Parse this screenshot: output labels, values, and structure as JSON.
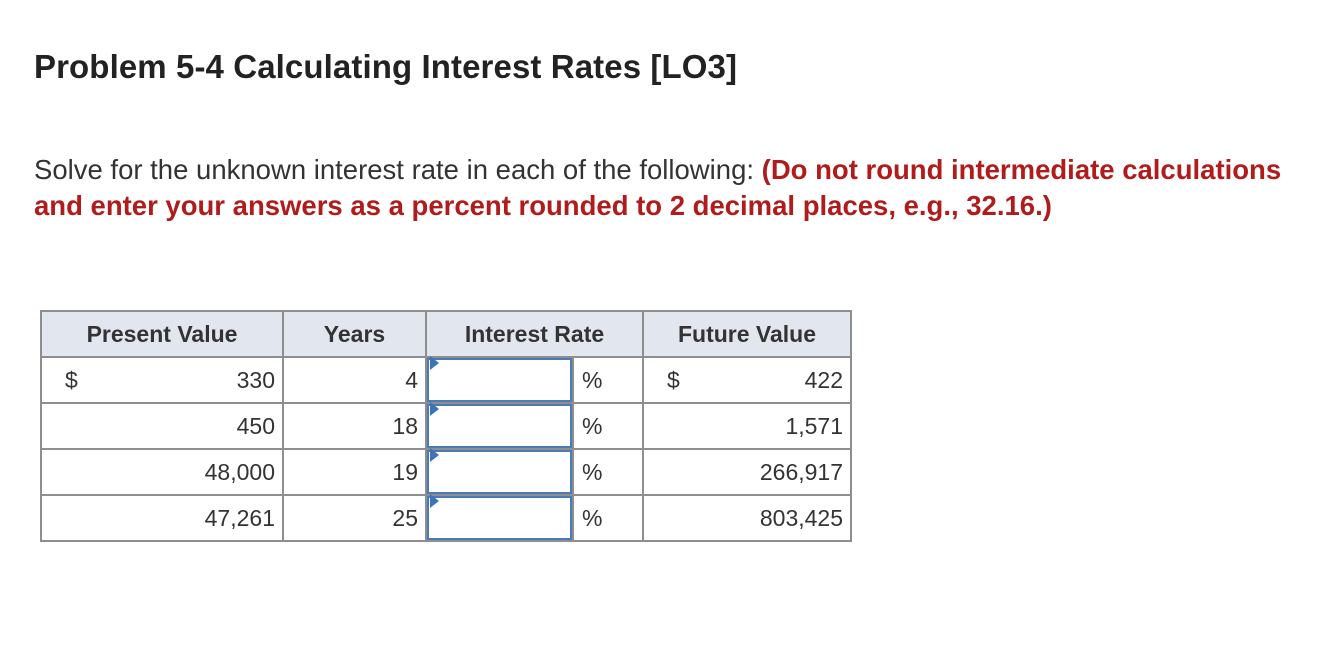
{
  "problem": {
    "title": "Problem 5-4 Calculating Interest Rates [LO3]",
    "instruction_text": "Solve for the unknown interest rate in each of the following: ",
    "instruction_note": "(Do not round intermediate calculations and enter your answers as a percent rounded to 2 decimal places, e.g., 32.16.)"
  },
  "table": {
    "headers": {
      "present_value": "Present Value",
      "years": "Years",
      "interest_rate": "Interest Rate",
      "future_value": "Future Value"
    },
    "rows": [
      {
        "pv_currency": "$",
        "present_value": "330",
        "years": "4",
        "interest_rate": "",
        "percent": "%",
        "fv_currency": "$",
        "future_value": "422"
      },
      {
        "pv_currency": "",
        "present_value": "450",
        "years": "18",
        "interest_rate": "",
        "percent": "%",
        "fv_currency": "",
        "future_value": "1,571"
      },
      {
        "pv_currency": "",
        "present_value": "48,000",
        "years": "19",
        "interest_rate": "",
        "percent": "%",
        "fv_currency": "",
        "future_value": "266,917"
      },
      {
        "pv_currency": "",
        "present_value": "47,261",
        "years": "25",
        "interest_rate": "",
        "percent": "%",
        "fv_currency": "",
        "future_value": "803,425"
      }
    ]
  },
  "colors": {
    "note_red": "#b01c1c",
    "header_bg": "#e2e6ee",
    "input_border": "#4a7bb5",
    "grid_border": "#8e8e8e"
  }
}
